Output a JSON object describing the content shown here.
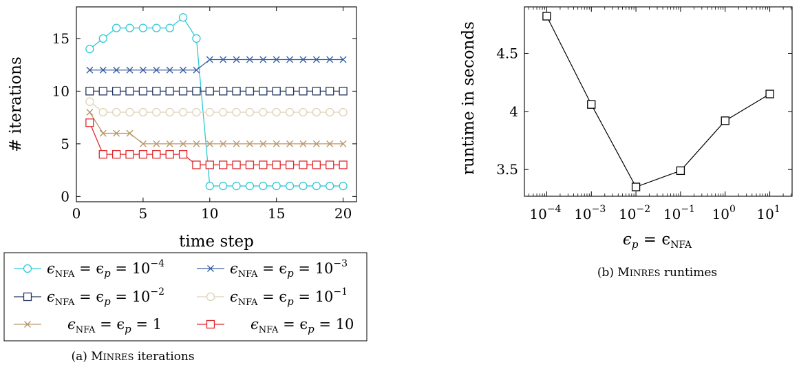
{
  "chart_data": [
    {
      "type": "line",
      "xlabel": "time step",
      "ylabel": "# iterations",
      "xlim": [
        0,
        21
      ],
      "ylim": [
        -0.5,
        18
      ],
      "xticks": [
        0,
        5,
        10,
        15,
        20
      ],
      "yticks": [
        0,
        5,
        10,
        15
      ],
      "x": [
        1,
        2,
        3,
        4,
        5,
        6,
        7,
        8,
        9,
        10,
        11,
        12,
        13,
        14,
        15,
        16,
        17,
        18,
        19,
        20
      ],
      "legend_position": "below",
      "grid": false,
      "series": [
        {
          "name": "ϵNFA = ϵp = 10^-4",
          "label_main": "ϵ",
          "label_sub": "NFA",
          "label_mid": " = ϵ",
          "label_sub2": "p",
          "label_eq": " = 10",
          "label_sup": "−4",
          "color": "#2ec9d6",
          "marker": "circle",
          "values": [
            14,
            15,
            16,
            16,
            16,
            16,
            16,
            17,
            15,
            1,
            1,
            1,
            1,
            1,
            1,
            1,
            1,
            1,
            1,
            1
          ]
        },
        {
          "name": "ϵNFA = ϵp = 10^-3",
          "label_main": "ϵ",
          "label_sub": "NFA",
          "label_mid": " = ϵ",
          "label_sub2": "p",
          "label_eq": " = 10",
          "label_sup": "−3",
          "color": "#3a5f9e",
          "marker": "cross",
          "values": [
            12,
            12,
            12,
            12,
            12,
            12,
            12,
            12,
            12,
            13,
            13,
            13,
            13,
            13,
            13,
            13,
            13,
            13,
            13,
            13
          ]
        },
        {
          "name": "ϵNFA = ϵp = 10^-2",
          "label_main": "ϵ",
          "label_sub": "NFA",
          "label_mid": " = ϵ",
          "label_sub2": "p",
          "label_eq": " = 10",
          "label_sup": "−2",
          "color": "#243760",
          "marker": "square",
          "values": [
            10,
            10,
            10,
            10,
            10,
            10,
            10,
            10,
            10,
            10,
            10,
            10,
            10,
            10,
            10,
            10,
            10,
            10,
            10,
            10
          ]
        },
        {
          "name": "ϵNFA = ϵp = 10^-1",
          "label_main": "ϵ",
          "label_sub": "NFA",
          "label_mid": " = ϵ",
          "label_sub2": "p",
          "label_eq": " = 10",
          "label_sup": "−1",
          "color": "#ddd2b4",
          "marker": "circle",
          "values": [
            9,
            8,
            8,
            8,
            8,
            8,
            8,
            8,
            8,
            8,
            8,
            8,
            8,
            8,
            8,
            8,
            8,
            8,
            8,
            8
          ]
        },
        {
          "name": "ϵNFA = ϵp = 1",
          "label_main": "ϵ",
          "label_sub": "NFA",
          "label_mid": " = ϵ",
          "label_sub2": "p",
          "label_eq": " = 1",
          "label_sup": "",
          "color": "#b8976a",
          "marker": "cross",
          "values": [
            8,
            6,
            6,
            6,
            5,
            5,
            5,
            5,
            5,
            5,
            5,
            5,
            5,
            5,
            5,
            5,
            5,
            5,
            5,
            5
          ]
        },
        {
          "name": "ϵNFA = ϵp = 10",
          "label_main": "ϵ",
          "label_sub": "NFA",
          "label_mid": " = ϵ",
          "label_sub2": "p",
          "label_eq": " = 10",
          "label_sup": "",
          "color": "#e0262a",
          "marker": "square",
          "values": [
            7,
            4,
            4,
            4,
            4,
            4,
            4,
            4,
            3,
            3,
            3,
            3,
            3,
            3,
            3,
            3,
            3,
            3,
            3,
            3
          ]
        }
      ],
      "caption_prefix": "(a) ",
      "caption_name": "Minres",
      "caption_suffix": " iterations"
    },
    {
      "type": "line",
      "xscale": "log",
      "xlabel_main": "ϵ",
      "xlabel_sub": "p",
      "xlabel_mid": " = ϵ",
      "xlabel_sub2": "NFA",
      "ylabel": "runtime in seconds",
      "xlim_log10": [
        -4.5,
        1.5
      ],
      "ylim": [
        3.27,
        4.9
      ],
      "xticks_exp": [
        "−4",
        "−3",
        "−2",
        "−1",
        "0",
        "1"
      ],
      "xtick_base": "10",
      "yticks": [
        3.5,
        4,
        4.5
      ],
      "ytick_labels": [
        "3.5",
        "4",
        "4.5"
      ],
      "x_log10": [
        -4,
        -3,
        -2,
        -1,
        0,
        1
      ],
      "values": [
        4.82,
        4.06,
        3.35,
        3.49,
        3.92,
        4.15
      ],
      "color": "#000000",
      "marker": "square",
      "caption_prefix": "(b) ",
      "caption_name": "Minres",
      "caption_suffix": " runtimes"
    }
  ]
}
